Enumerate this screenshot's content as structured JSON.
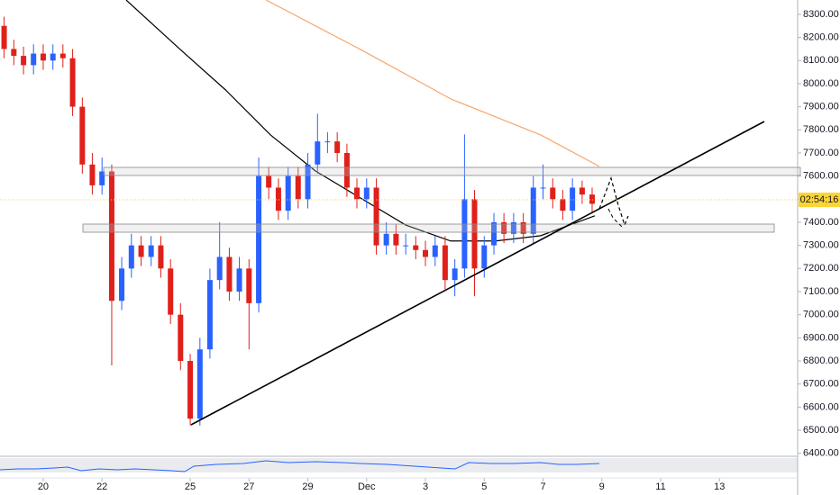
{
  "chart_data": {
    "type": "candlestick",
    "up_color": "#2962ff",
    "down_color": "#e0201b",
    "x": [
      18.67,
      19,
      19.33,
      19.67,
      20,
      20.33,
      20.67,
      21,
      21.33,
      21.67,
      22,
      22.33,
      22.67,
      23,
      23.33,
      23.67,
      24,
      24.33,
      24.67,
      25,
      25.33,
      25.67,
      26,
      26.33,
      26.67,
      27,
      27.33,
      27.67,
      28,
      28.33,
      28.67,
      29,
      29.33,
      29.67,
      30,
      30.33,
      30.67,
      31,
      31.33,
      31.67,
      32,
      32.33,
      32.67,
      33,
      33.33,
      33.67,
      34,
      34.33,
      34.67,
      35,
      35.33,
      35.67,
      36,
      36.33,
      36.67,
      37,
      37.33,
      37.67,
      38,
      38.33,
      38.67
    ],
    "open": [
      8250,
      8150,
      8120,
      8080,
      8130,
      8100,
      8130,
      8110,
      7900,
      7650,
      7560,
      7620,
      7060,
      7200,
      7300,
      7250,
      7300,
      7200,
      7000,
      6800,
      6550,
      6850,
      7150,
      7250,
      7100,
      7200,
      7050,
      7600,
      7550,
      7450,
      7600,
      7500,
      7650,
      7750,
      7750,
      7700,
      7550,
      7500,
      7550,
      7300,
      7350,
      7300,
      7300,
      7280,
      7250,
      7300,
      7150,
      7200,
      7500,
      7200,
      7300,
      7400,
      7350,
      7400,
      7350,
      7550,
      7550,
      7500,
      7450,
      7550,
      7520
    ],
    "high": [
      8290,
      8190,
      8160,
      8170,
      8170,
      8170,
      8170,
      8150,
      7940,
      7700,
      7680,
      7650,
      7250,
      7350,
      7340,
      7340,
      7340,
      7240,
      7050,
      6830,
      6900,
      7200,
      7400,
      7290,
      7250,
      7240,
      7680,
      7640,
      7590,
      7640,
      7640,
      7700,
      7870,
      7790,
      7790,
      7740,
      7590,
      7590,
      7590,
      7400,
      7390,
      7350,
      7340,
      7320,
      7340,
      7340,
      7240,
      7780,
      7540,
      7340,
      7440,
      7440,
      7440,
      7440,
      7600,
      7650,
      7590,
      7540,
      7590,
      7580,
      7550
    ],
    "low": [
      8110,
      8080,
      8040,
      8040,
      8060,
      8060,
      8070,
      7860,
      7610,
      7520,
      7520,
      6780,
      7020,
      7160,
      7210,
      7210,
      7160,
      6960,
      6760,
      6520,
      6520,
      6810,
      7110,
      7060,
      7060,
      6850,
      7010,
      7500,
      7410,
      7410,
      7460,
      7460,
      7610,
      7700,
      7660,
      7510,
      7460,
      7460,
      7260,
      7260,
      7260,
      7260,
      7240,
      7210,
      7210,
      7110,
      7080,
      7160,
      7080,
      7160,
      7260,
      7310,
      7310,
      7310,
      7310,
      7500,
      7460,
      7410,
      7410,
      7480,
      7440
    ],
    "close": [
      8150,
      8120,
      8080,
      8130,
      8100,
      8130,
      8110,
      7900,
      7650,
      7560,
      7620,
      7060,
      7200,
      7300,
      7250,
      7300,
      7200,
      7000,
      6800,
      6550,
      6850,
      7150,
      7250,
      7100,
      7200,
      7050,
      7600,
      7550,
      7450,
      7600,
      7500,
      7650,
      7750,
      7750,
      7700,
      7550,
      7500,
      7550,
      7300,
      7350,
      7300,
      7300,
      7280,
      7250,
      7300,
      7150,
      7200,
      7500,
      7200,
      7300,
      7400,
      7350,
      7400,
      7350,
      7550,
      7550,
      7500,
      7450,
      7550,
      7520,
      7480
    ],
    "series": [
      {
        "color": "#000000",
        "x": [
          22.82,
          24.66,
          26.2,
          27.73,
          29.26,
          30.79,
          32.33,
          33.86,
          35.39,
          36.92,
          38.76
        ],
        "values": [
          8362,
          8148,
          7973,
          7778,
          7622,
          7505,
          7388,
          7319,
          7319,
          7342,
          7428
        ]
      },
      {
        "color": "#f7a56a",
        "x": [
          27.58,
          30.79,
          33.86,
          36.92,
          38.91
        ],
        "values": [
          8362,
          8148,
          7934,
          7778,
          7642
        ]
      }
    ],
    "countdown": "02:54:16",
    "xlim": [
      18.53,
      45.66
    ],
    "xticks": [
      {
        "value": 20,
        "label": "20"
      },
      {
        "value": 22,
        "label": "22"
      },
      {
        "value": 25,
        "label": "25"
      },
      {
        "value": 27,
        "label": "27"
      },
      {
        "value": 29,
        "label": "29"
      },
      {
        "value": 31,
        "label": "Dec"
      },
      {
        "value": 33,
        "label": "3"
      },
      {
        "value": 35,
        "label": "5"
      },
      {
        "value": 37,
        "label": "7"
      },
      {
        "value": 39,
        "label": "9"
      },
      {
        "value": 41,
        "label": "11"
      },
      {
        "value": 43,
        "label": "13"
      }
    ],
    "ylim": [
      6395,
      8362
    ],
    "yticks": [
      {
        "value": 8300,
        "label": "8300.00"
      },
      {
        "value": 8200,
        "label": "8200.00"
      },
      {
        "value": 8100,
        "label": "8100.00"
      },
      {
        "value": 8000,
        "label": "8000.00"
      },
      {
        "value": 7900,
        "label": "7900.00"
      },
      {
        "value": 7800,
        "label": "7800.00"
      },
      {
        "value": 7700,
        "label": "7700.00"
      },
      {
        "value": 7600,
        "label": "7600.00"
      },
      {
        "value": 7500,
        "label": "7500.00"
      },
      {
        "value": 7400,
        "label": "7400.00"
      },
      {
        "value": 7300,
        "label": "7300.00"
      },
      {
        "value": 7200,
        "label": "7200.00"
      },
      {
        "value": 7100,
        "label": "7100.00"
      },
      {
        "value": 7000,
        "label": "7000.00"
      },
      {
        "value": 6900,
        "label": "6900.00"
      },
      {
        "value": 6800,
        "label": "6800.00"
      },
      {
        "value": 6700,
        "label": "6700.00"
      },
      {
        "value": 6600,
        "label": "6600.00"
      },
      {
        "value": 6500,
        "label": "6500.00"
      },
      {
        "value": 6400,
        "label": "6400.00"
      }
    ]
  }
}
